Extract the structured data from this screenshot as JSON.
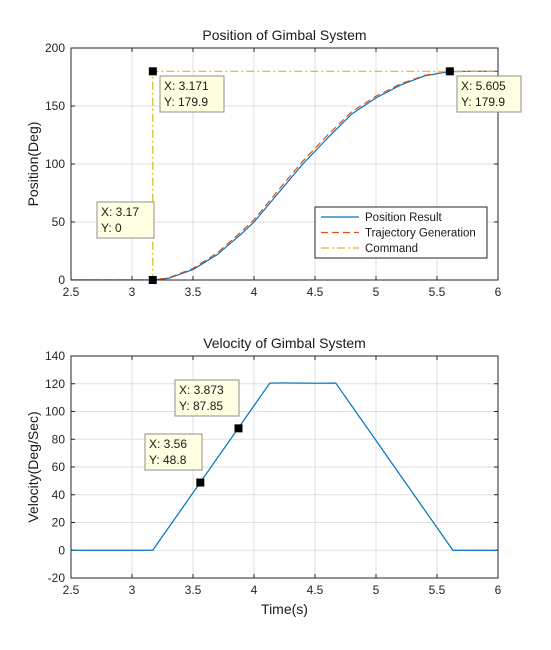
{
  "chart_data": [
    {
      "type": "line",
      "title": "Position of Gimbal System",
      "xlabel": "",
      "ylabel": "Position(Deg)",
      "xlim": [
        2.5,
        6
      ],
      "ylim": [
        0,
        200
      ],
      "xticks": [
        "2.5",
        "3",
        "3.5",
        "4",
        "4.5",
        "5",
        "5.5",
        "6"
      ],
      "yticks": [
        "0",
        "50",
        "100",
        "150",
        "200"
      ],
      "grid": true,
      "legend_position": "bottom-right",
      "colors": {
        "position_result": "#0072bd",
        "trajectory": "#d95319",
        "command": "#edb120"
      },
      "series": [
        {
          "name": "Position Result",
          "style": "solid",
          "x": [
            2.5,
            3.0,
            3.17,
            3.3,
            3.5,
            3.7,
            3.9,
            4.0,
            4.2,
            4.4,
            4.6,
            4.8,
            5.0,
            5.2,
            5.4,
            5.6,
            5.8,
            6.0
          ],
          "y": [
            0,
            0,
            0,
            1.5,
            9,
            22,
            40,
            50,
            75,
            100,
            122,
            143,
            157,
            168,
            176,
            179.6,
            179.9,
            179.9
          ]
        },
        {
          "name": "Trajectory Generation",
          "style": "dashed",
          "x": [
            2.5,
            3.0,
            3.17,
            3.3,
            3.5,
            3.7,
            3.9,
            4.0,
            4.2,
            4.4,
            4.6,
            4.8,
            5.0,
            5.2,
            5.4,
            5.6,
            5.8,
            6.0
          ],
          "y": [
            0,
            0,
            0,
            1.8,
            10,
            23.5,
            42,
            52,
            77.5,
            102.5,
            124.5,
            145,
            158.5,
            169,
            176.5,
            179.7,
            179.9,
            179.9
          ]
        },
        {
          "name": "Command",
          "style": "dashdot",
          "x": [
            2.5,
            3.17,
            3.17,
            6.0
          ],
          "y": [
            0,
            0,
            179.9,
            179.9
          ]
        }
      ],
      "datatips": [
        {
          "x": 3.17,
          "y": 0,
          "x_text": "X: 3.17",
          "y_text": "Y: 0"
        },
        {
          "x": 3.171,
          "y": 179.9,
          "x_text": "X: 3.171",
          "y_text": "Y: 179.9"
        },
        {
          "x": 5.605,
          "y": 179.9,
          "x_text": "X: 5.605",
          "y_text": "Y: 179.9"
        }
      ]
    },
    {
      "type": "line",
      "title": "Velocity of Gimbal System",
      "xlabel": "Time(s)",
      "ylabel": "Velocity(Deg/Sec)",
      "xlim": [
        2.5,
        6
      ],
      "ylim": [
        -20,
        140
      ],
      "xticks": [
        "2.5",
        "3",
        "3.5",
        "4",
        "4.5",
        "5",
        "5.5",
        "6"
      ],
      "yticks": [
        "-20",
        "0",
        "20",
        "40",
        "60",
        "80",
        "100",
        "120",
        "140"
      ],
      "grid": true,
      "colors": {
        "velocity": "#0072bd"
      },
      "series": [
        {
          "name": "",
          "style": "solid",
          "x": [
            2.5,
            3.17,
            4.13,
            4.25,
            4.5,
            4.67,
            5.63,
            6.0
          ],
          "y": [
            0,
            0,
            120.5,
            120.6,
            120.4,
            120.5,
            0,
            0
          ]
        }
      ],
      "datatips": [
        {
          "x": 3.56,
          "y": 48.8,
          "x_text": "X: 3.56",
          "y_text": "Y: 48.8"
        },
        {
          "x": 3.873,
          "y": 87.85,
          "x_text": "X: 3.873",
          "y_text": "Y: 87.85"
        }
      ]
    }
  ]
}
